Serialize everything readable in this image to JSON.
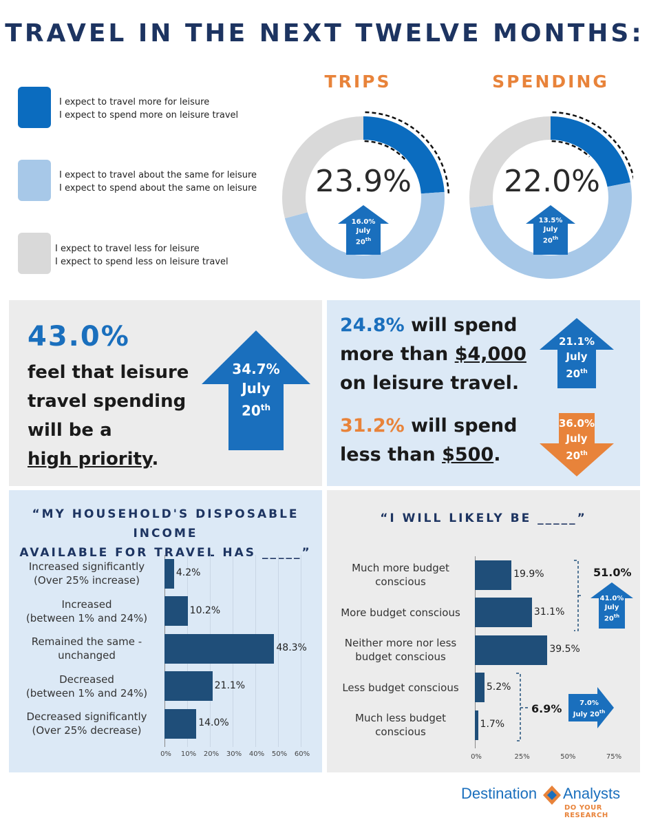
{
  "title": "TRAVEL IN THE NEXT TWELVE MONTHS:",
  "colors": {
    "dark_blue": "#0b6cbf",
    "light_blue": "#a7c8e8",
    "gray": "#d9d9d9",
    "orange": "#e8833a",
    "navy": "#1f4e79",
    "title_navy": "#1d3461"
  },
  "legend": [
    {
      "line1": "I expect to travel more for leisure",
      "line2": "I expect to spend more on leisure travel"
    },
    {
      "line1": "I expect to travel about the same for leisure",
      "line2": "I expect to spend about the same on leisure"
    },
    {
      "line1": "I expect to travel less for leisure",
      "line2": "I expect to spend less on leisure travel"
    }
  ],
  "donut_trips": {
    "title": "TRIPS",
    "value_label": "23.9%",
    "arrow_value": "16.0%",
    "arrow_month": "July",
    "arrow_year": "20",
    "arrow_suffix": "th"
  },
  "donut_spending": {
    "title": "SPENDING",
    "value_label": "22.0%",
    "arrow_value": "13.5%",
    "arrow_month": "July",
    "arrow_year": "20",
    "arrow_suffix": "th"
  },
  "priority": {
    "pct": "43.0%",
    "line1": "feel that leisure",
    "line2": "travel spending",
    "line3": "will be a",
    "line4": "high priority",
    "line4_end": ".",
    "arrow_value": "34.7%",
    "arrow_month": "July",
    "arrow_year": "20",
    "arrow_suffix": "th"
  },
  "spend_more": {
    "pct": "24.8%",
    "text1": " will spend",
    "text2": "more than ",
    "amount": "$4,000",
    "text3": "on leisure travel.",
    "arrow_value": "21.1%",
    "arrow_month": "July",
    "arrow_year": "20",
    "arrow_suffix": "th"
  },
  "spend_less": {
    "pct": "31.2%",
    "text1": " will spend",
    "text2": "less than ",
    "amount": "$500",
    "text3": ".",
    "arrow_value": "36.0%",
    "arrow_month": "July",
    "arrow_year": "20",
    "arrow_suffix": "th"
  },
  "income_title_line1": "“MY HOUSEHOLD'S DISPOSABLE INCOME",
  "income_title_line2": "AVAILABLE FOR TRAVEL HAS _____”",
  "budget_title": "“I WILL LIKELY BE _____”",
  "budget_bracket_top": "51.0%",
  "budget_bracket_bottom": "6.9%",
  "budget_arrow_up": {
    "value": "41.0%",
    "month": "July",
    "year": "20",
    "suffix": "th"
  },
  "budget_arrow_right": {
    "value": "7.0%",
    "line2": "July 20",
    "suffix": "th"
  },
  "chart_data": [
    {
      "type": "donut",
      "title": "TRIPS",
      "categories": [
        "I expect to travel more for leisure",
        "I expect to travel about the same for leisure",
        "I expect to travel less for leisure"
      ],
      "values": [
        23.9,
        47.0,
        29.1
      ],
      "highlight": "23.9%"
    },
    {
      "type": "donut",
      "title": "SPENDING",
      "categories": [
        "I expect to spend more on leisure travel",
        "I expect to spend about the same on leisure",
        "I expect to spend less on leisure travel"
      ],
      "values": [
        22.0,
        51.0,
        27.0
      ],
      "highlight": "22.0%"
    },
    {
      "type": "bar",
      "orientation": "horizontal",
      "title": "“MY HOUSEHOLD'S DISPOSABLE INCOME AVAILABLE FOR TRAVEL HAS _____”",
      "categories": [
        [
          "Increased significantly",
          "(Over 25% increase)"
        ],
        [
          "Increased",
          "(between 1% and 24%)"
        ],
        [
          "Remained the same -",
          "unchanged"
        ],
        [
          "Decreased",
          "(between 1% and 24%)"
        ],
        [
          "Decreased significantly",
          "(Over 25% decrease)"
        ]
      ],
      "values": [
        4.2,
        10.2,
        48.3,
        21.1,
        14.0
      ],
      "value_labels": [
        "4.2%",
        "10.2%",
        "48.3%",
        "21.1%",
        "14.0%"
      ],
      "xlim": [
        0,
        60
      ],
      "ticks": [
        "0%",
        "10%",
        "20%",
        "30%",
        "40%",
        "50%",
        "60%"
      ],
      "grid": true
    },
    {
      "type": "bar",
      "orientation": "horizontal",
      "title": "“I WILL LIKELY BE _____”",
      "categories": [
        [
          "Much more budget",
          "conscious"
        ],
        [
          "More budget conscious"
        ],
        [
          "Neither more nor less",
          "budget conscious"
        ],
        [
          "Less budget conscious"
        ],
        [
          "Much less budget",
          "conscious"
        ]
      ],
      "values": [
        19.9,
        31.1,
        39.5,
        5.2,
        1.7
      ],
      "value_labels": [
        "19.9%",
        "31.1%",
        "39.5%",
        "5.2%",
        "1.7%"
      ],
      "xlim": [
        0,
        75
      ],
      "ticks": [
        "0%",
        "25%",
        "50%",
        "75%"
      ],
      "grid": false
    }
  ],
  "brand": {
    "name1": "Destination",
    "name2": "Analysts",
    "tagline": "DO YOUR RESEARCH"
  }
}
